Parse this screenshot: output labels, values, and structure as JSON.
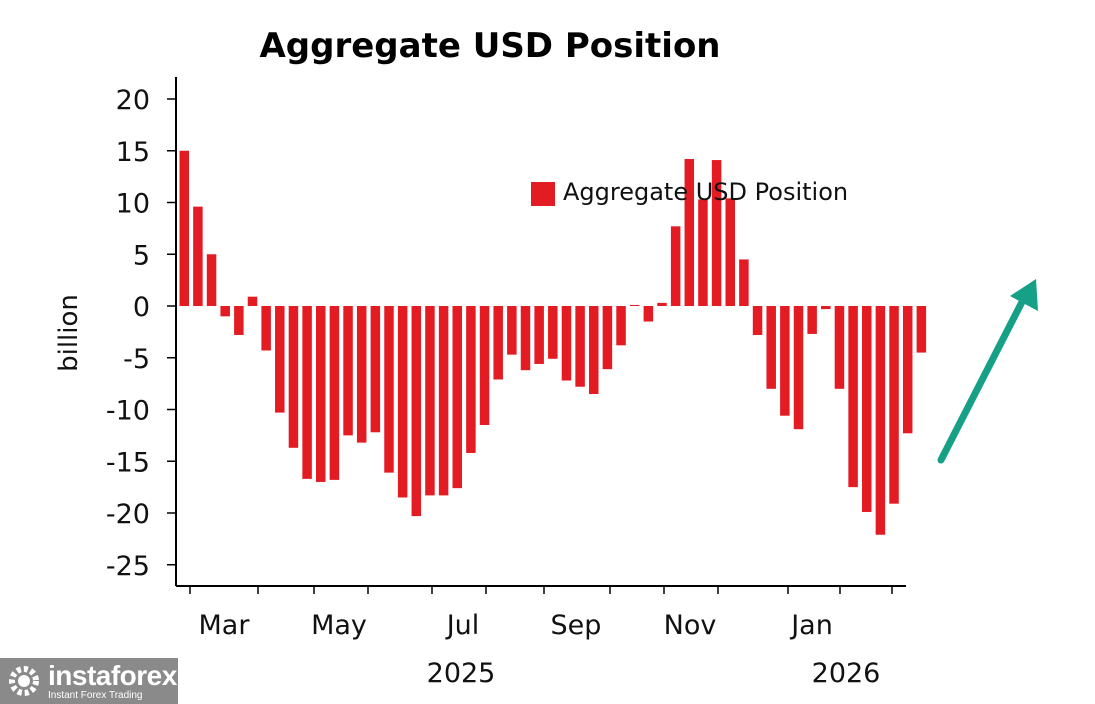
{
  "chart_data": {
    "type": "bar",
    "title": "Aggregate USD Position",
    "ylabel": "billion",
    "xlabel": "",
    "ylim": [
      -27,
      22
    ],
    "yticks": [
      20,
      15,
      10,
      5,
      0,
      -5,
      -10,
      -15,
      -20,
      -25
    ],
    "legend": "Aggregate USD Position",
    "legend_position": "top-right",
    "month_labels": [
      "Mar",
      "May",
      "Jul",
      "Sep",
      "Nov",
      "Jan"
    ],
    "year_labels": [
      "2025",
      "2026"
    ],
    "values": [
      15.0,
      9.6,
      5.0,
      -1.0,
      -2.8,
      0.9,
      -4.3,
      -10.3,
      -13.7,
      -16.7,
      -17.0,
      -16.8,
      -12.5,
      -13.2,
      -12.2,
      -16.1,
      -18.5,
      -20.3,
      -18.3,
      -18.3,
      -17.6,
      -14.2,
      -11.5,
      -7.1,
      -4.7,
      -6.2,
      -5.6,
      -5.1,
      -7.2,
      -7.8,
      -8.5,
      -6.1,
      -3.8,
      0.1,
      -1.5,
      0.3,
      7.7,
      14.2,
      10.3,
      14.1,
      10.4,
      4.5,
      -2.8,
      -8.0,
      -10.6,
      -11.9,
      -2.7,
      -0.3,
      -8.0,
      -17.5,
      -19.9,
      -22.1,
      -19.1,
      -12.3,
      -4.5
    ],
    "colors": {
      "bar": "#e31b23",
      "arrow": "#16a085"
    }
  },
  "watermark": {
    "brand": "instaforex",
    "tagline": "Instant Forex Trading"
  }
}
